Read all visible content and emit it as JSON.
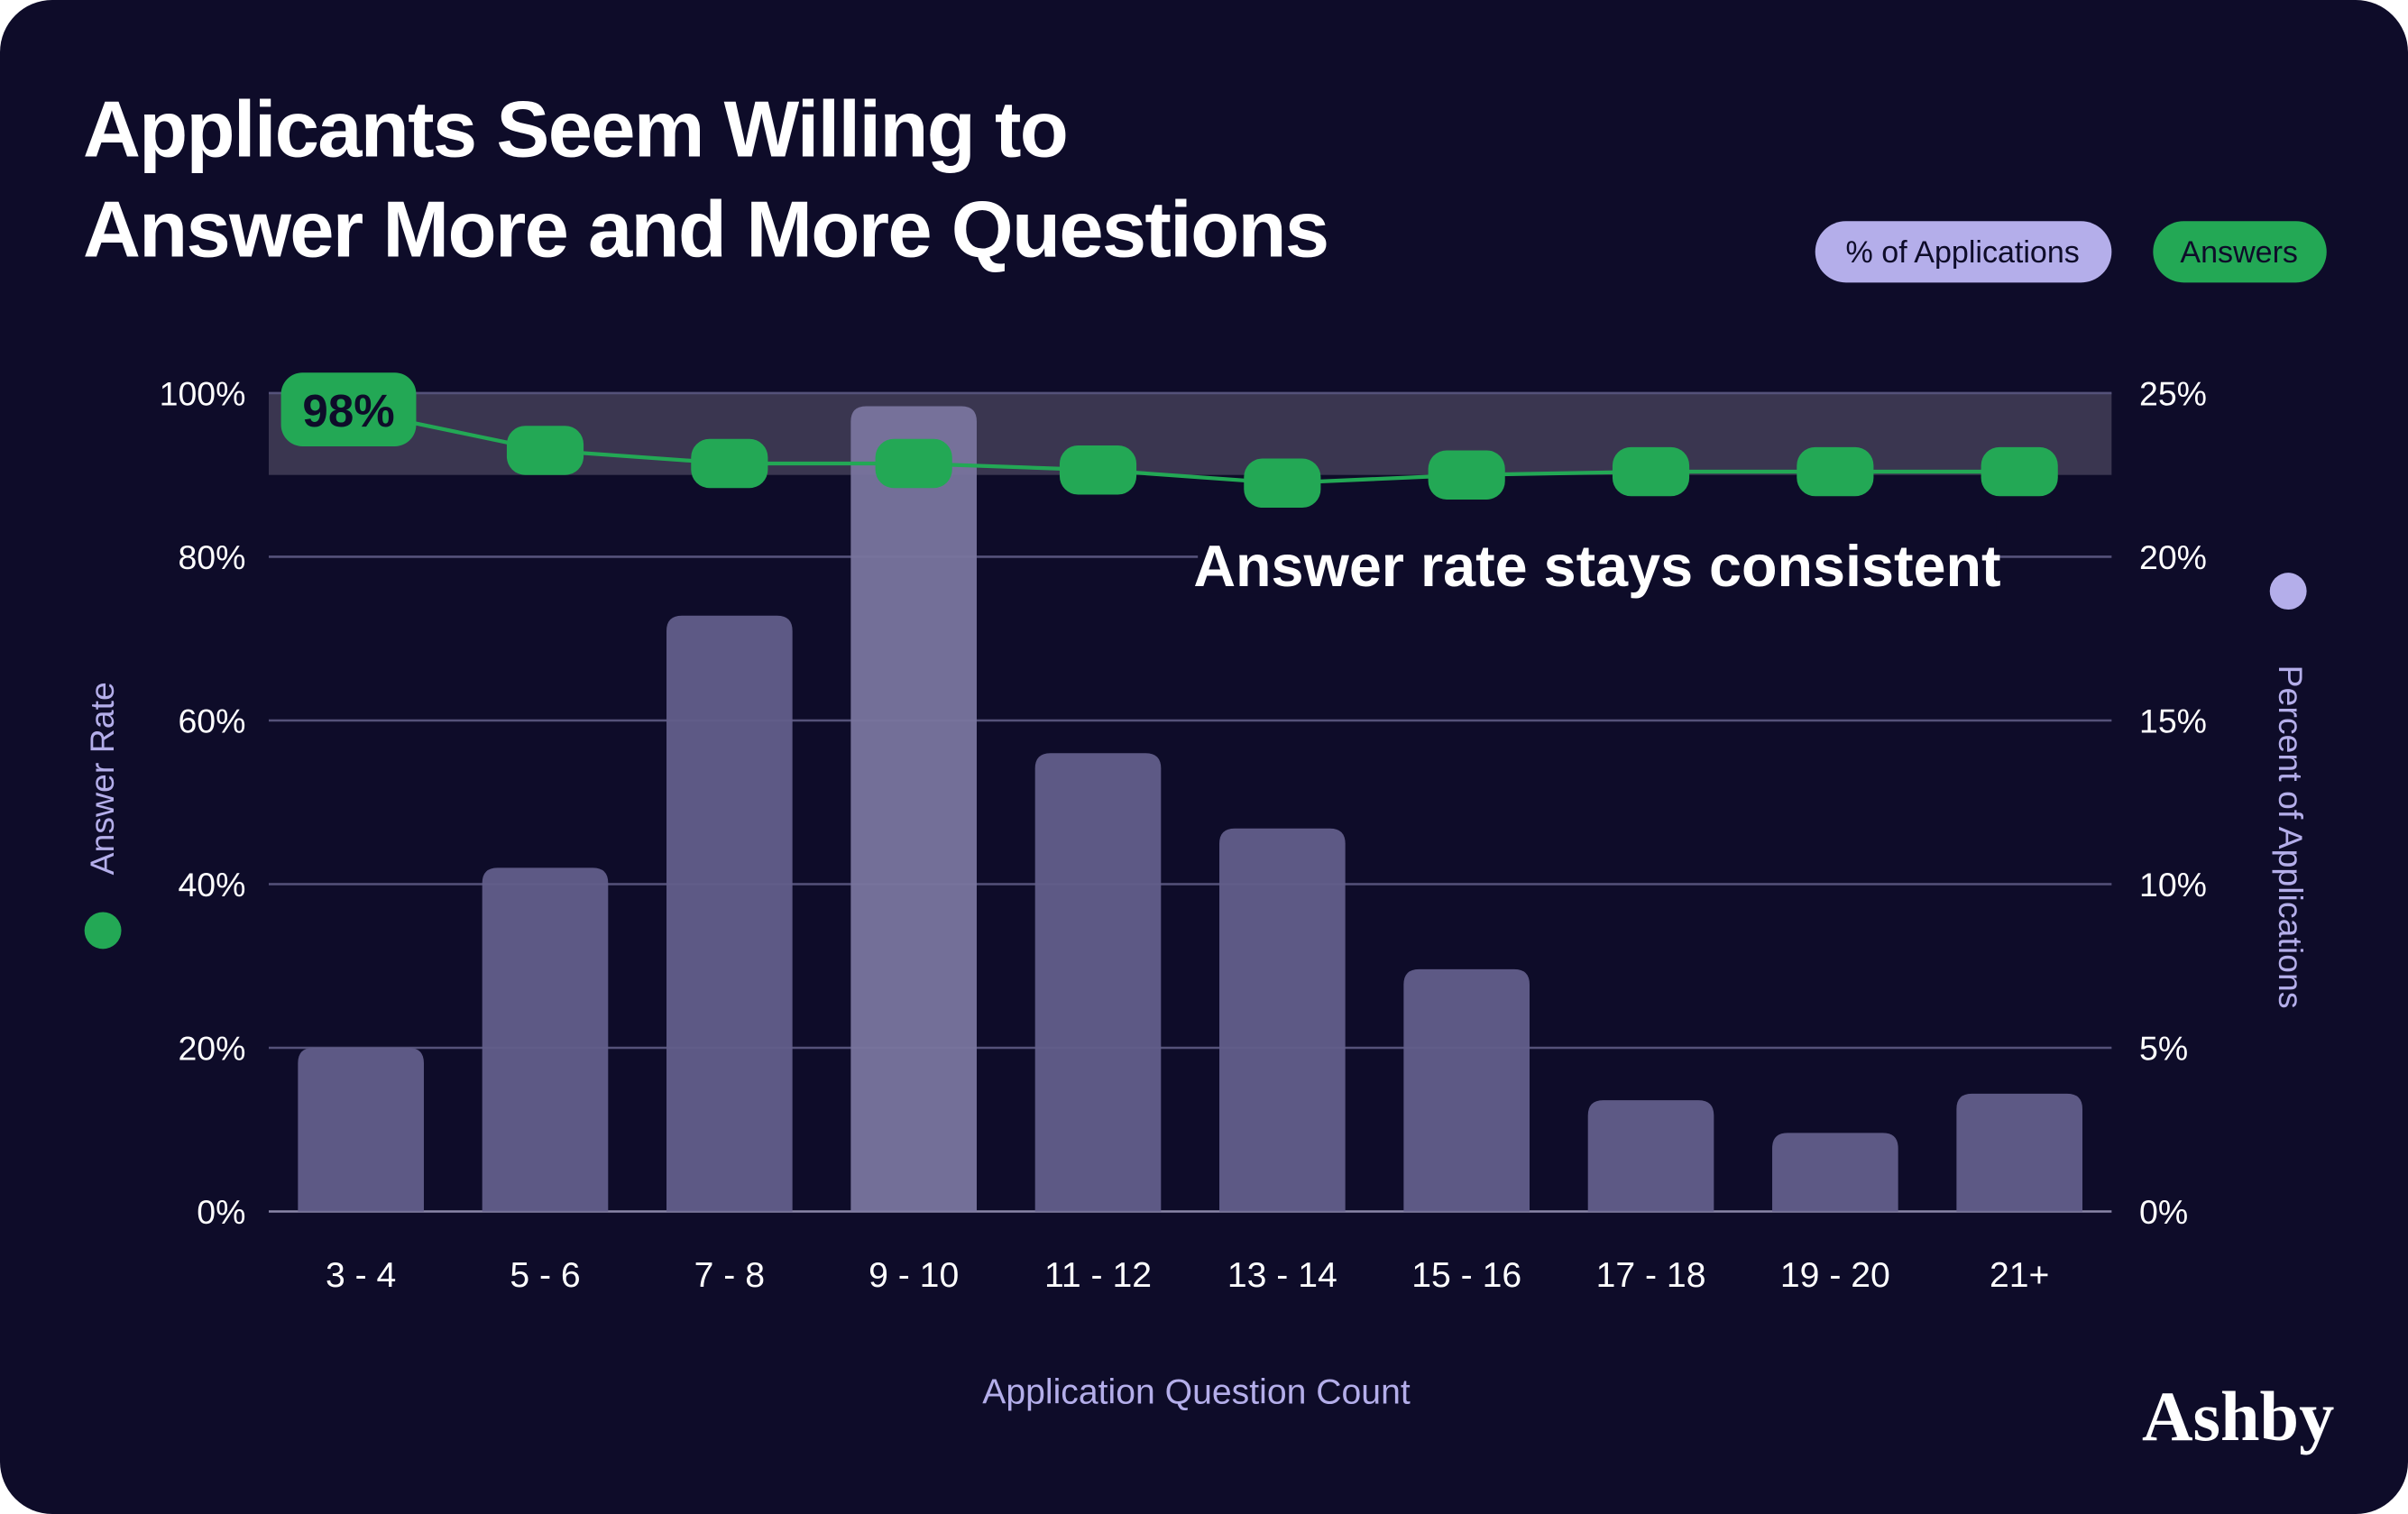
{
  "colors": {
    "background": "#0e0c29",
    "bar": "#625e8a",
    "bar_highlight": "#79759e",
    "line": "#23a855",
    "band": "#3a3650",
    "legend_pct": "#b4aeea",
    "legend_ans": "#23a855",
    "axis_label": "#b4aeea"
  },
  "legend": {
    "pct_label": "% of Applications",
    "answers_label": "Answers"
  },
  "brand": "Ashby",
  "chart_data": {
    "type": "bar+line",
    "title": "Applicants Seem Willing to Answer More and More Questions",
    "title_lines": [
      "Applicants Seem Willing to",
      "Answer More and More Questions"
    ],
    "xlabel": "Application Question Count",
    "ylabel_left": "Answer Rate",
    "ylabel_right": "Percent of Applications",
    "categories": [
      "3 - 4",
      "5 - 6",
      "7 - 8",
      "9 - 10",
      "11 - 12",
      "13 - 14",
      "15 - 16",
      "17 - 18",
      "19 - 20",
      "21+"
    ],
    "left_ticks": [
      "0%",
      "20%",
      "40%",
      "60%",
      "80%",
      "100%"
    ],
    "right_ticks": [
      "0%",
      "5%",
      "10%",
      "15%",
      "20%",
      "25%"
    ],
    "ylim_left": [
      0,
      100
    ],
    "ylim_right": [
      0,
      25
    ],
    "series": [
      {
        "name": "% of Applications",
        "type": "bar",
        "axis": "right",
        "values": [
          5.0,
          10.5,
          18.2,
          24.6,
          14.0,
          11.7,
          7.4,
          3.4,
          2.4,
          3.6
        ]
      },
      {
        "name": "Answers",
        "type": "line",
        "axis": "left",
        "values": [
          98,
          93,
          91.4,
          91.4,
          90.6,
          89,
          90,
          90.4,
          90.4,
          90.4
        ]
      }
    ],
    "highlight_band": [
      90,
      100
    ],
    "annotations": {
      "first_point_label": "98%",
      "band_note": "Answer rate stays consistent"
    },
    "grid": true,
    "legend_position": "top-right"
  }
}
